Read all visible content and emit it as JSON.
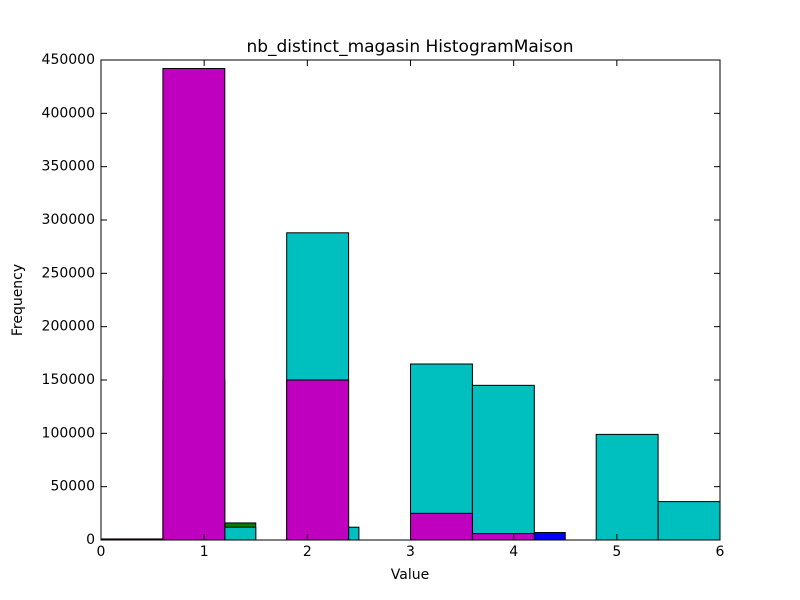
{
  "chart_data": {
    "type": "histogram",
    "title": "nb_distinct_magasin HistogramMaison",
    "x_label": "Value",
    "y_label": "Frequency",
    "xlim": [
      0,
      6
    ],
    "xticks": [
      0,
      1,
      2,
      3,
      4,
      5,
      6
    ],
    "ylim": [
      0,
      450000
    ],
    "yticks": [
      0,
      50000,
      100000,
      150000,
      200000,
      250000,
      300000,
      350000,
      400000,
      450000
    ],
    "series": [
      {
        "color": "#0000ff",
        "bins": [
          4.2,
          4.5
        ],
        "values": [
          7000
        ]
      },
      {
        "color": "#008000",
        "bins": [
          1.2,
          1.5
        ],
        "values": [
          16000
        ]
      },
      {
        "color": "#00bfbf",
        "bins": [
          0,
          0.6,
          1.2,
          1.5,
          1.8,
          2.4,
          2.5,
          3.0,
          3.6,
          4.2,
          4.8,
          5.4,
          6.0
        ],
        "values": [
          0,
          150000,
          12000,
          0,
          288000,
          12000,
          0,
          165000,
          145000,
          0,
          99000,
          36000
        ]
      },
      {
        "color": "#bf00bf",
        "bins": [
          0,
          0.6,
          1.2,
          1.8,
          2.4,
          3.0,
          3.6,
          4.2
        ],
        "values": [
          1000,
          442000,
          0,
          150000,
          0,
          25000,
          6000
        ]
      }
    ]
  }
}
